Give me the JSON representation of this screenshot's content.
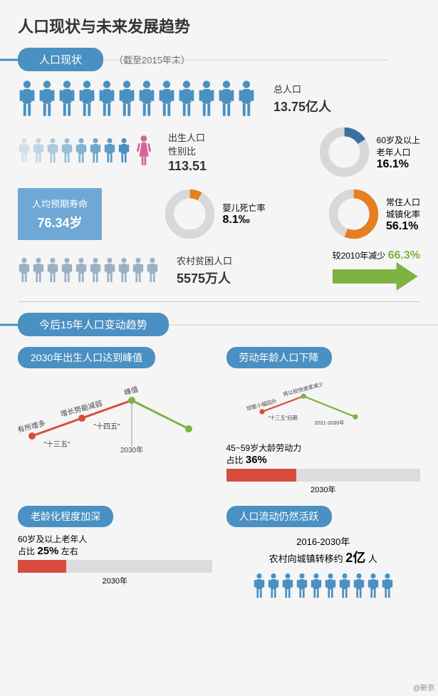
{
  "title": "人口现状与未来发展趋势",
  "section1": {
    "header": "人口现状",
    "note": "（截至2015年末）"
  },
  "colors": {
    "blue": "#4a90c2",
    "blueDark": "#3a6fa0",
    "orange": "#e67e22",
    "green": "#7cb342",
    "red": "#d84c3e",
    "grey": "#d0d0d0",
    "pink": "#d4649a",
    "lightBlue": "#a8c8e0"
  },
  "total": {
    "count": 12,
    "label": "总人口",
    "value": "13.75亿人",
    "color": "#4a90c2"
  },
  "gender": {
    "fadeCount": 8,
    "label1": "出生人口",
    "label2": "性别比",
    "value": "113.51",
    "femaleColor": "#d4649a"
  },
  "elderly": {
    "label1": "60岁及以上",
    "label2": "老年人口",
    "value": "16.1%",
    "pct": 16.1,
    "color": "#3a6fa0",
    "bg": "#d8d8d8"
  },
  "life": {
    "label": "人均预期寿命",
    "value": "76.34岁"
  },
  "infant": {
    "label": "婴儿死亡率",
    "value": "8.1‰",
    "pct": 8.1,
    "color": "#e67e22",
    "bg": "#d8d8d8"
  },
  "urban": {
    "label1": "常住人口",
    "label2": "城镇化率",
    "value": "56.1%",
    "pct": 56.1,
    "color": "#e67e22",
    "bg": "#d8d8d8"
  },
  "poverty": {
    "count": 10,
    "label": "农村贫困人口",
    "value": "5575万人",
    "color": "#9bb0c4"
  },
  "reduce": {
    "label": "较2010年减少",
    "value": "66.3%"
  },
  "section2": {
    "header": "今后15年人口变动趋势"
  },
  "trend1": {
    "title": "2030年出生人口达到峰值",
    "labels": [
      "有所增多",
      "增长势能减弱",
      "峰值"
    ],
    "periods": [
      "\"十三五\"",
      "\"十四五\""
    ],
    "year": "2030年",
    "points": [
      [
        20,
        85
      ],
      [
        90,
        60
      ],
      [
        160,
        35
      ],
      [
        240,
        75
      ]
    ],
    "seg_colors": [
      "#d84c3e",
      "#d84c3e",
      "#7cb342"
    ]
  },
  "trend2": {
    "title": "劳动年龄人口下降",
    "labels": [
      "短暂小幅回升",
      "将以较快速度减少"
    ],
    "periods": [
      "\"十三五\"后期",
      "2021-2030年"
    ],
    "points": [
      [
        20,
        70
      ],
      [
        100,
        40
      ],
      [
        200,
        80
      ]
    ],
    "seg_colors": [
      "#d84c3e",
      "#7cb342"
    ],
    "bar": {
      "label": "45~59岁大龄劳动力",
      "labelPct": "占比",
      "value": "36%",
      "pct": 36,
      "year": "2030年",
      "color": "#d84c3e"
    }
  },
  "trend3": {
    "title": "老龄化程度加深",
    "bar": {
      "label": "60岁及以上老年人",
      "labelPct": "占比",
      "value": "25%",
      "suffix": "左右",
      "pct": 25,
      "year": "2030年",
      "color": "#d84c3e"
    }
  },
  "trend4": {
    "title": "人口流动仍然活跃",
    "line1": "2016-2030年",
    "line2a": "农村向城镇转移约",
    "line2b": "2亿",
    "line2c": "人",
    "count": 10,
    "color": "#4a90c2"
  },
  "watermark": "@新京"
}
